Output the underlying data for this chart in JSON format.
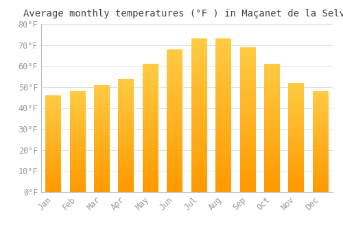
{
  "title": "Average monthly temperatures (°F ) in Maçanet de la Selva",
  "months": [
    "Jan",
    "Feb",
    "Mar",
    "Apr",
    "May",
    "Jun",
    "Jul",
    "Aug",
    "Sep",
    "Oct",
    "Nov",
    "Dec"
  ],
  "values": [
    46.0,
    48.0,
    51.0,
    54.0,
    61.0,
    68.0,
    73.0,
    73.0,
    69.0,
    61.0,
    52.0,
    48.0
  ],
  "bar_color_top": "#FFB733",
  "bar_color_bottom": "#FF9900",
  "ylim": [
    0,
    80
  ],
  "ytick_step": 10,
  "background_color": "#FFFFFF",
  "grid_color": "#DDDDDD",
  "title_fontsize": 10,
  "tick_fontsize": 8.5,
  "tick_color": "#999999",
  "spine_color": "#BBBBBB",
  "bar_width": 0.65
}
